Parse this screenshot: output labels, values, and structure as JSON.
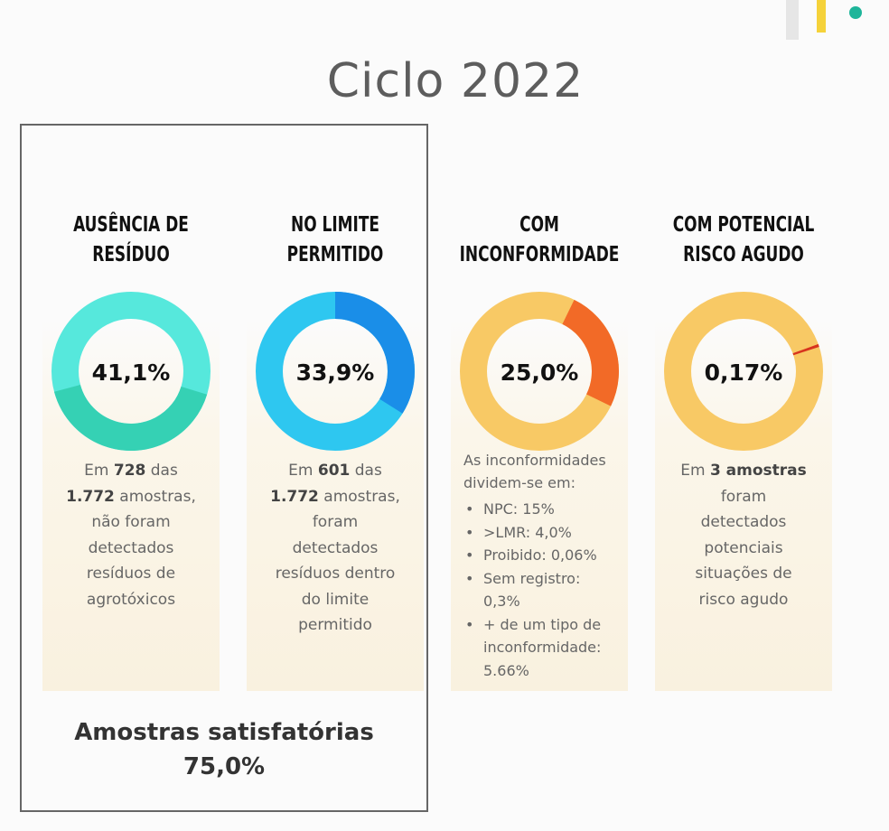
{
  "page": {
    "title": "Ciclo 2022"
  },
  "colors": {
    "teal_light": "#56e8dc",
    "teal_dark": "#35d1b4",
    "blue_light": "#2ec7f0",
    "blue_dark": "#1a8ee8",
    "amber": "#f8c965",
    "orange": "#f26a27",
    "red": "#d7341e"
  },
  "cards": [
    {
      "title_lines": [
        "AUSÊNCIA DE",
        "RESÍDUO"
      ],
      "center_label": "41,1%",
      "desc_lines": [
        "Em 728 das",
        "1.772 amostras,",
        "não foram",
        "detectados",
        "resíduos de",
        "agrotóxicos"
      ]
    },
    {
      "title_lines": [
        "NO LIMITE",
        "PERMITIDO"
      ],
      "center_label": "33,9%",
      "desc_lines": [
        "Em 601 das",
        "1.772 amostras,",
        "foram",
        "detectados",
        "resíduos dentro",
        "do limite",
        "permitido"
      ]
    },
    {
      "title_lines": [
        "COM",
        "INCONFORMIDADE"
      ],
      "center_label": "25,0%",
      "intro_lines": [
        "As inconformidades",
        "dividem-se em:"
      ],
      "breakdown": [
        {
          "lines": [
            "NPC: 15%"
          ]
        },
        {
          "lines": [
            ">LMR: 4,0%"
          ]
        },
        {
          "lines": [
            "Proibido: 0,06%"
          ]
        },
        {
          "lines": [
            "Sem registro:",
            "0,3%"
          ]
        },
        {
          "lines": [
            "+ de um tipo de",
            "inconformidade:",
            "5.66%"
          ]
        }
      ]
    },
    {
      "title_lines": [
        "COM POTENCIAL",
        "RISCO AGUDO"
      ],
      "center_label": "0,17%",
      "desc_lines": [
        "Em 3 amostras",
        "foram",
        "detectados",
        "potenciais",
        "situações de",
        "risco agudo"
      ]
    }
  ],
  "chart_data": {
    "type": "pie",
    "title": "Ciclo 2022",
    "categories": [
      "AUSÊNCIA DE RESÍDUO",
      "NO LIMITE PERMITIDO",
      "COM INCONFORMIDADE",
      "COM POTENCIAL RISCO AGUDO"
    ],
    "values": [
      41.1,
      33.9,
      25.0,
      0.17
    ],
    "samples_total": 1772,
    "samples": [
      728,
      601,
      null,
      3
    ],
    "summary": {
      "label": "Amostras satisfatórias",
      "value": 75.0
    }
  },
  "footer": {
    "label": "Amostras satisfatórias",
    "value_text": "75,0%"
  }
}
